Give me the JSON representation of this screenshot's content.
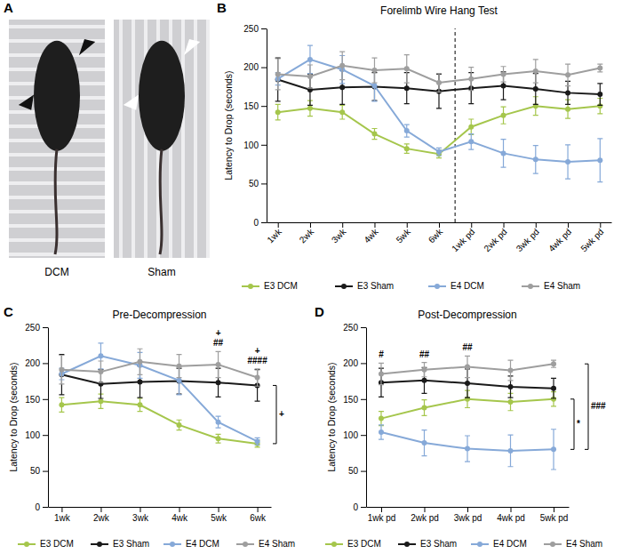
{
  "chart_data": [
    {
      "type": "image",
      "panel": "A",
      "labels": [
        "DCM",
        "Sham"
      ]
    },
    {
      "type": "line",
      "panel": "B",
      "title": "Forelimb Wire Hang Test",
      "ylabel": "Latency to Drop (seconds)",
      "categories": [
        "1wk",
        "2wk",
        "3wk",
        "4wk",
        "5wk",
        "6wk",
        "1wk pd",
        "2wk pd",
        "3wk pd",
        "4wk pd",
        "5wk pd"
      ],
      "divider_before": "1wk pd",
      "ylim": [
        0,
        250
      ],
      "yticks": [
        0,
        50,
        100,
        150,
        200,
        250
      ],
      "grid": false,
      "legend": "bottom",
      "marker": "circle",
      "series": [
        {
          "name": "E3 DCM",
          "color": "#a5c64c",
          "values": [
            142,
            147,
            142,
            114,
            95,
            88,
            123,
            138,
            150,
            146,
            150
          ],
          "errors": [
            10,
            10,
            9,
            7,
            6,
            5,
            10,
            11,
            12,
            12,
            10
          ]
        },
        {
          "name": "E3 Sham",
          "color": "#1a1a1a",
          "values": [
            184,
            171,
            174,
            175,
            173,
            169,
            173,
            176,
            172,
            167,
            165
          ],
          "errors": [
            28,
            20,
            22,
            18,
            20,
            22,
            20,
            18,
            20,
            15,
            14
          ]
        },
        {
          "name": "E4 DCM",
          "color": "#86a9d8",
          "values": [
            185,
            210,
            197,
            176,
            118,
            91,
            104,
            89,
            81,
            78,
            80
          ],
          "errors": [
            8,
            18,
            18,
            20,
            8,
            5,
            10,
            18,
            18,
            22,
            28
          ]
        },
        {
          "name": "E4 Sham",
          "color": "#9e9e9e",
          "values": [
            191,
            188,
            202,
            196,
            198,
            180,
            185,
            191,
            195,
            190,
            199
          ],
          "errors": [
            20,
            15,
            18,
            16,
            18,
            12,
            15,
            10,
            15,
            14,
            5
          ]
        }
      ]
    },
    {
      "type": "line",
      "panel": "C",
      "title": "Pre-Decompression",
      "ylabel": "Latency to Drop (seconds)",
      "categories": [
        "1wk",
        "2wk",
        "3wk",
        "4wk",
        "5wk",
        "6wk"
      ],
      "ylim": [
        0,
        250
      ],
      "yticks": [
        0,
        50,
        100,
        150,
        200,
        250
      ],
      "grid": false,
      "legend": "bottom",
      "marker": "circle",
      "series": [
        {
          "name": "E3 DCM",
          "color": "#a5c64c",
          "values": [
            142,
            147,
            142,
            114,
            95,
            88
          ],
          "errors": [
            10,
            10,
            9,
            7,
            6,
            5
          ]
        },
        {
          "name": "E3 Sham",
          "color": "#1a1a1a",
          "values": [
            184,
            171,
            174,
            175,
            173,
            169
          ],
          "errors": [
            28,
            20,
            22,
            18,
            20,
            22
          ]
        },
        {
          "name": "E4 DCM",
          "color": "#86a9d8",
          "values": [
            185,
            210,
            197,
            176,
            118,
            91
          ],
          "errors": [
            8,
            18,
            18,
            20,
            8,
            5
          ]
        },
        {
          "name": "E4 Sham",
          "color": "#9e9e9e",
          "values": [
            191,
            188,
            202,
            196,
            198,
            180
          ],
          "errors": [
            20,
            15,
            18,
            16,
            18,
            12
          ]
        }
      ],
      "annotations": [
        {
          "text": "+",
          "category": "5wk"
        },
        {
          "text": "##",
          "category": "5wk"
        },
        {
          "text": "+",
          "category": "6wk"
        },
        {
          "text": "####",
          "category": "6wk"
        }
      ],
      "brackets": [
        {
          "text": "+",
          "series": [
            "E3 Sham",
            "E3 DCM"
          ]
        }
      ]
    },
    {
      "type": "line",
      "panel": "D",
      "title": "Post-Decompression",
      "ylabel": "Latency to Drop (seconds)",
      "categories": [
        "1wk pd",
        "2wk pd",
        "3wk pd",
        "4wk pd",
        "5wk pd"
      ],
      "ylim": [
        0,
        250
      ],
      "yticks": [
        0,
        50,
        100,
        150,
        200,
        250
      ],
      "grid": false,
      "legend": "bottom",
      "marker": "circle",
      "series": [
        {
          "name": "E3 DCM",
          "color": "#a5c64c",
          "values": [
            123,
            138,
            150,
            146,
            150
          ],
          "errors": [
            10,
            11,
            12,
            12,
            10
          ]
        },
        {
          "name": "E3 Sham",
          "color": "#1a1a1a",
          "values": [
            173,
            176,
            172,
            167,
            165
          ],
          "errors": [
            20,
            18,
            20,
            15,
            14
          ]
        },
        {
          "name": "E4 DCM",
          "color": "#86a9d8",
          "values": [
            104,
            89,
            81,
            78,
            80
          ],
          "errors": [
            10,
            18,
            18,
            22,
            28
          ]
        },
        {
          "name": "E4 Sham",
          "color": "#9e9e9e",
          "values": [
            185,
            191,
            195,
            190,
            199
          ],
          "errors": [
            15,
            10,
            15,
            14,
            5
          ]
        }
      ],
      "annotations": [
        {
          "text": "#",
          "category": "1wk pd"
        },
        {
          "text": "##",
          "category": "2wk pd"
        },
        {
          "text": "##",
          "category": "3wk pd"
        }
      ],
      "brackets": [
        {
          "text": "*",
          "series": [
            "E3 DCM",
            "E4 DCM"
          ]
        },
        {
          "text": "###",
          "series": [
            "E4 Sham",
            "E4 DCM"
          ]
        }
      ]
    }
  ]
}
